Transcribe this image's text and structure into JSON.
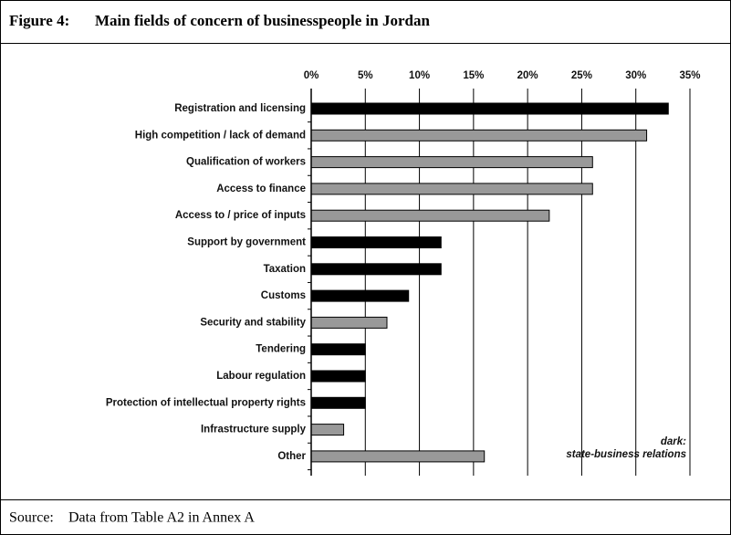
{
  "figure_label": "Figure 4:",
  "chart_data": {
    "type": "bar",
    "orientation": "horizontal",
    "title": "Main fields of concern of businesspeople in Jordan",
    "categories": [
      "Registration and licensing",
      "High competition / lack of demand",
      "Qualification of workers",
      "Access to finance",
      "Access to / price of inputs",
      "Support by government",
      "Taxation",
      "Customs",
      "Security and stability",
      "Tendering",
      "Labour regulation",
      "Protection of intellectual property rights",
      "Infrastructure supply",
      "Other"
    ],
    "values": [
      33,
      31,
      26,
      26,
      22,
      12,
      12,
      9,
      7,
      5,
      5,
      5,
      3,
      16
    ],
    "colors": [
      "#000000",
      "#999999",
      "#999999",
      "#999999",
      "#999999",
      "#000000",
      "#000000",
      "#000000",
      "#999999",
      "#000000",
      "#000000",
      "#000000",
      "#999999",
      "#999999"
    ],
    "xlim": [
      0,
      35
    ],
    "xticks": [
      {
        "value": 0,
        "label": "0%"
      },
      {
        "value": 5,
        "label": "5%"
      },
      {
        "value": 10,
        "label": "10%"
      },
      {
        "value": 15,
        "label": "15%"
      },
      {
        "value": 20,
        "label": "20%"
      },
      {
        "value": 25,
        "label": "25%"
      },
      {
        "value": 30,
        "label": "30%"
      },
      {
        "value": 35,
        "label": "35%"
      }
    ],
    "grid": true,
    "annotations": [
      "dark:",
      "state-business relations"
    ]
  },
  "source": {
    "label": "Source:",
    "text": "Data from Table A2 in Annex A"
  }
}
